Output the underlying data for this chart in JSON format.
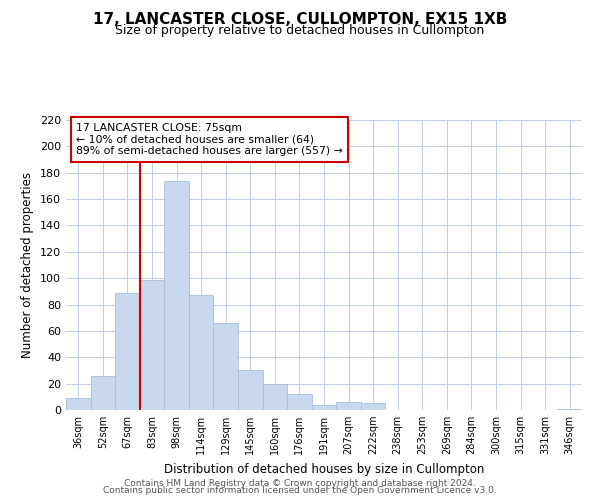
{
  "title": "17, LANCASTER CLOSE, CULLOMPTON, EX15 1XB",
  "subtitle": "Size of property relative to detached houses in Cullompton",
  "xlabel": "Distribution of detached houses by size in Cullompton",
  "ylabel": "Number of detached properties",
  "bar_labels": [
    "36sqm",
    "52sqm",
    "67sqm",
    "83sqm",
    "98sqm",
    "114sqm",
    "129sqm",
    "145sqm",
    "160sqm",
    "176sqm",
    "191sqm",
    "207sqm",
    "222sqm",
    "238sqm",
    "253sqm",
    "269sqm",
    "284sqm",
    "300sqm",
    "315sqm",
    "331sqm",
    "346sqm"
  ],
  "bar_values": [
    9,
    26,
    89,
    99,
    174,
    87,
    66,
    30,
    20,
    12,
    4,
    6,
    5,
    0,
    0,
    0,
    0,
    0,
    0,
    0,
    1
  ],
  "bar_color": "#c8d9ef",
  "bar_edge_color": "#a8c0de",
  "ylim": [
    0,
    220
  ],
  "yticks": [
    0,
    20,
    40,
    60,
    80,
    100,
    120,
    140,
    160,
    180,
    200,
    220
  ],
  "property_label": "17 LANCASTER CLOSE: 75sqm",
  "annotation_line1": "← 10% of detached houses are smaller (64)",
  "annotation_line2": "89% of semi-detached houses are larger (557) →",
  "vline_x_index": 2.5,
  "vline_color": "#cc0000",
  "footer_line1": "Contains HM Land Registry data © Crown copyright and database right 2024.",
  "footer_line2": "Contains public sector information licensed under the Open Government Licence v3.0.",
  "background_color": "#ffffff",
  "grid_color": "#c0cfe8"
}
